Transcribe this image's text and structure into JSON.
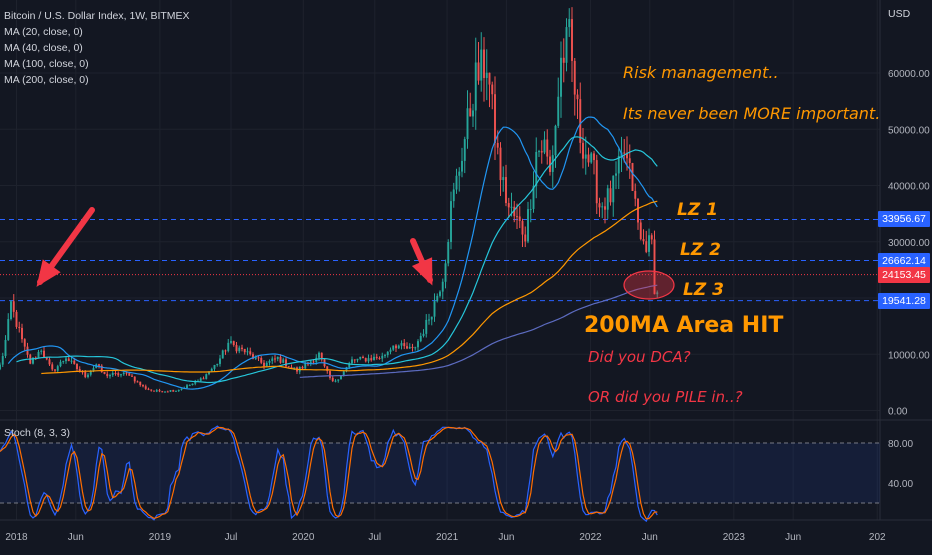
{
  "legend": {
    "title": "Bitcoin / U.S. Dollar Index, 1W, BITMEX",
    "ma_labels": [
      "MA (20, close, 0)",
      "MA (40, close, 0)",
      "MA (100, close, 0)",
      "MA (200, close, 0)"
    ]
  },
  "stoch_label": "Stoch (8, 3, 3)",
  "currency_label": "USD",
  "annotations": {
    "risk_line1": "Risk management..",
    "risk_line2": "Its never been MORE important.",
    "lz1": "LZ 1",
    "lz2": "LZ 2",
    "lz3": "LZ 3",
    "hit": "200MA Area HIT",
    "dca": "Did you DCA?",
    "pile": "OR did you PILE in..?"
  },
  "badges": [
    {
      "value": 33956.67,
      "label": "33956.67",
      "color": "#2962ff"
    },
    {
      "value": 26662.14,
      "label": "26662.14",
      "color": "#2962ff"
    },
    {
      "value": 24153.45,
      "label": "24153.45",
      "color": "#f23645"
    },
    {
      "value": 19541.28,
      "label": "19541.28",
      "color": "#2962ff"
    }
  ],
  "colors": {
    "background": "#131722",
    "up": "#26a69a",
    "down": "#ef5350",
    "ma20": "#2196f3",
    "ma40": "#26c6da",
    "ma100": "#ff9800",
    "ma200": "#5c6bc0",
    "stoch_k": "#2962ff",
    "stoch_d": "#ff6d00",
    "zone_line": "#2962ff",
    "current_line": "#f23645",
    "arrow": "#f23645"
  },
  "chart_data": {
    "type": "candlestick",
    "y_axis": {
      "ticks": [
        0,
        10000,
        20000,
        30000,
        40000,
        50000,
        60000
      ],
      "tick_labels": [
        "0.00",
        "10000.00",
        "20000.00",
        "30000.00",
        "40000.00",
        "50000.00",
        "60000.00"
      ],
      "range": [
        0,
        70000
      ]
    },
    "x_axis": {
      "start": "2017-11-20",
      "end": "2024-01-08",
      "ticks": [
        {
          "date": "2018-01-01",
          "label": "2018"
        },
        {
          "date": "2018-06-01",
          "label": "Jun"
        },
        {
          "date": "2019-01-01",
          "label": "2019"
        },
        {
          "date": "2019-07-01",
          "label": "Jul"
        },
        {
          "date": "2020-01-01",
          "label": "2020"
        },
        {
          "date": "2020-07-01",
          "label": "Jul"
        },
        {
          "date": "2021-01-01",
          "label": "2021"
        },
        {
          "date": "2021-06-01",
          "label": "Jun"
        },
        {
          "date": "2022-01-01",
          "label": "2022"
        },
        {
          "date": "2022-06-01",
          "label": "Jun"
        },
        {
          "date": "2023-01-01",
          "label": "2023"
        },
        {
          "date": "2023-06-01",
          "label": "Jun"
        },
        {
          "date": "2024-01-01",
          "label": "202"
        }
      ]
    },
    "price_keypoints": [
      [
        "2017-11-20",
        8000
      ],
      [
        "2017-12-18",
        19000
      ],
      [
        "2018-01-08",
        14000
      ],
      [
        "2018-02-05",
        8500
      ],
      [
        "2018-03-05",
        11000
      ],
      [
        "2018-04-02",
        7000
      ],
      [
        "2018-05-07",
        9500
      ],
      [
        "2018-06-25",
        6200
      ],
      [
        "2018-07-23",
        8200
      ],
      [
        "2018-08-13",
        6300
      ],
      [
        "2018-10-15",
        6500
      ],
      [
        "2018-11-19",
        4200
      ],
      [
        "2018-12-17",
        3400
      ],
      [
        "2019-02-11",
        3600
      ],
      [
        "2019-04-08",
        5200
      ],
      [
        "2019-05-27",
        8500
      ],
      [
        "2019-06-24",
        12000
      ],
      [
        "2019-08-05",
        10500
      ],
      [
        "2019-09-23",
        8200
      ],
      [
        "2019-10-28",
        9300
      ],
      [
        "2019-12-16",
        7100
      ],
      [
        "2020-02-10",
        10000
      ],
      [
        "2020-03-16",
        5000
      ],
      [
        "2020-05-04",
        8900
      ],
      [
        "2020-07-20",
        9500
      ],
      [
        "2020-08-17",
        11800
      ],
      [
        "2020-10-05",
        10700
      ],
      [
        "2020-11-16",
        16500
      ],
      [
        "2020-12-21",
        24000
      ],
      [
        "2021-01-11",
        36000
      ],
      [
        "2021-02-08",
        46000
      ],
      [
        "2021-02-22",
        51000
      ],
      [
        "2021-03-15",
        59000
      ],
      [
        "2021-04-12",
        62000
      ],
      [
        "2021-05-17",
        42000
      ],
      [
        "2021-06-07",
        36000
      ],
      [
        "2021-07-19",
        31500
      ],
      [
        "2021-08-16",
        46000
      ],
      [
        "2021-09-06",
        47000
      ],
      [
        "2021-09-20",
        42000
      ],
      [
        "2021-10-18",
        62000
      ],
      [
        "2021-11-08",
        66000
      ],
      [
        "2021-12-06",
        49000
      ],
      [
        "2022-01-10",
        42000
      ],
      [
        "2022-01-24",
        36500
      ],
      [
        "2022-02-21",
        38000
      ],
      [
        "2022-03-28",
        46000
      ],
      [
        "2022-04-18",
        40000
      ],
      [
        "2022-05-09",
        30000
      ],
      [
        "2022-06-06",
        29500
      ],
      [
        "2022-06-13",
        22000
      ],
      [
        "2022-06-20",
        21000
      ]
    ],
    "volatility": 0.09,
    "ma_series": [
      {
        "name": "MA (20, close, 0)",
        "period": 20,
        "key": "ma20"
      },
      {
        "name": "MA (40, close, 0)",
        "period": 40,
        "key": "ma40"
      },
      {
        "name": "MA (100, close, 0)",
        "period": 100,
        "key": "ma100"
      },
      {
        "name": "MA (200, close, 0)",
        "period": 200,
        "key": "ma200"
      }
    ],
    "levels": {
      "lz1": 33956.67,
      "lz2": 26662.14,
      "current": 24153.45,
      "lz3": 19541.28
    },
    "stochastic": {
      "name": "Stoch (8, 3, 3)",
      "k": 8,
      "d": 3,
      "smooth": 3,
      "ticks": [
        40,
        80
      ],
      "tick_labels": [
        "40.00",
        "80.00"
      ],
      "band": [
        20,
        80
      ],
      "range": [
        0,
        100
      ]
    }
  }
}
